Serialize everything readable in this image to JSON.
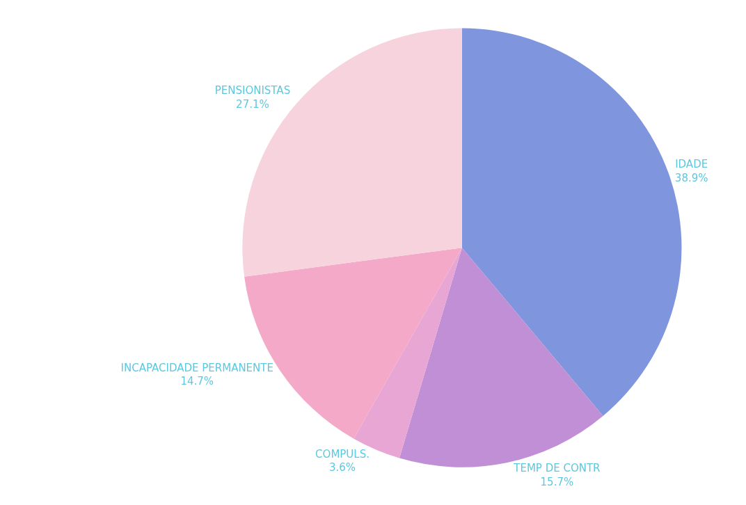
{
  "chart_data": {
    "type": "pie",
    "categories": [
      "IDADE",
      "TEMP DE CONTR",
      "COMPULS.",
      "INCAPACIDADE PERMANENTE",
      "PENSIONISTAS"
    ],
    "values": [
      38.9,
      15.7,
      3.6,
      14.7,
      27.1
    ],
    "value_labels": [
      "38.9%",
      "15.7%",
      "3.6%",
      "14.7%",
      "27.1%"
    ],
    "colors": [
      "#7f95dd",
      "#c08fd6",
      "#e7a6d3",
      "#f3a9c7",
      "#f7d3dd"
    ],
    "legend": false
  }
}
